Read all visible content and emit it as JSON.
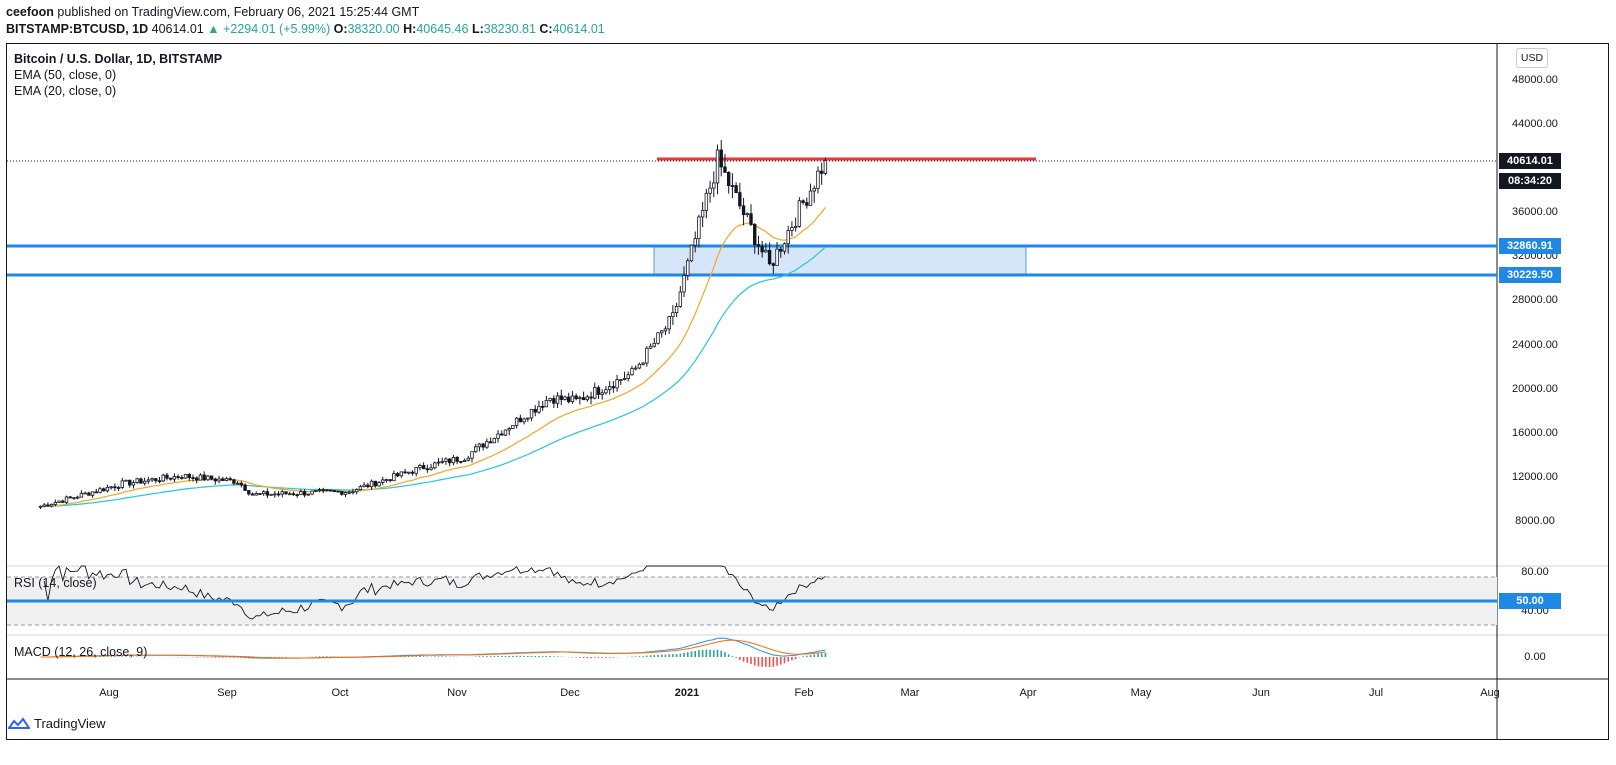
{
  "header": {
    "publisher": "ceefoon",
    "published_text": "published on TradingView.com, February 06, 2021 15:25:44 GMT",
    "symbol": "BITSTAMP:BTCUSD, 1D",
    "last": "40614.01",
    "change": "▲ +2294.01 (+5.99%)",
    "o_label": "O:",
    "o_value": "38320.00",
    "h_label": "H:",
    "h_value": "40645.46",
    "l_label": "L:",
    "l_value": "38230.81",
    "c_label": "C:",
    "c_value": "40614.01"
  },
  "legend": {
    "title": "Bitcoin / U.S. Dollar, 1D, BITSTAMP",
    "ema50": "EMA (50, close, 0)",
    "ema20": "EMA (20, close, 0)",
    "rsi": "RSI (14, close)",
    "macd": "MACD (12, 26, close, 9)"
  },
  "price_axis": {
    "currency_button": "USD",
    "labels": [
      "48000.00",
      "44000.00",
      "36000.00",
      "32000.00",
      "28000.00",
      "24000.00",
      "20000.00",
      "16000.00",
      "12000.00",
      "8000.00"
    ],
    "last_price_tag": "40614.01",
    "countdown_tag": "08:34:20",
    "resistance_top_tag": "32860.91",
    "support_bottom_tag": "30229.50"
  },
  "rsi_axis": {
    "labels": [
      "80.00",
      "40.00"
    ],
    "midline_tag": "50.00"
  },
  "macd_axis": {
    "labels": [
      "0.00"
    ]
  },
  "time_axis": {
    "labels": [
      "Aug",
      "Sep",
      "Oct",
      "Nov",
      "Dec",
      "2021",
      "Feb",
      "Mar",
      "Apr",
      "May",
      "Jun",
      "Jul",
      "Aug"
    ],
    "bold_label": "2021"
  },
  "footer": {
    "brand": "TradingView"
  },
  "colors": {
    "ema50": "#26c6da",
    "ema20": "#f5a623",
    "levels": "#1e88e5",
    "resistance": "#e53935",
    "zone_fill": "#d6e6f8",
    "up": "#26a69a",
    "macd_line": "#2196f3",
    "signal_line": "#ff6d00"
  },
  "chart_data": {
    "type": "candlestick",
    "title": "Bitcoin / U.S. Dollar, 1D, BITSTAMP",
    "ylim": [
      6500,
      49500
    ],
    "closes_monthly_approx": [
      {
        "x": "2020-07-10",
        "y": 9250
      },
      {
        "x": "2020-08-01",
        "y": 11300
      },
      {
        "x": "2020-08-17",
        "y": 12000
      },
      {
        "x": "2020-09-01",
        "y": 11500
      },
      {
        "x": "2020-09-05",
        "y": 10300
      },
      {
        "x": "2020-10-01",
        "y": 10600
      },
      {
        "x": "2020-10-21",
        "y": 12800
      },
      {
        "x": "2020-11-01",
        "y": 13700
      },
      {
        "x": "2020-11-24",
        "y": 19100
      },
      {
        "x": "2020-12-01",
        "y": 18800
      },
      {
        "x": "2020-12-16",
        "y": 21300
      },
      {
        "x": "2020-12-27",
        "y": 26300
      },
      {
        "x": "2021-01-08",
        "y": 40600
      },
      {
        "x": "2021-01-22",
        "y": 31000
      },
      {
        "x": "2021-02-06",
        "y": 40614
      }
    ],
    "levels": [
      {
        "label": "32860.91",
        "value": 32860.91
      },
      {
        "label": "30229.50",
        "value": 30229.5
      },
      {
        "label": "40614.01",
        "value": 40614.01
      }
    ]
  }
}
